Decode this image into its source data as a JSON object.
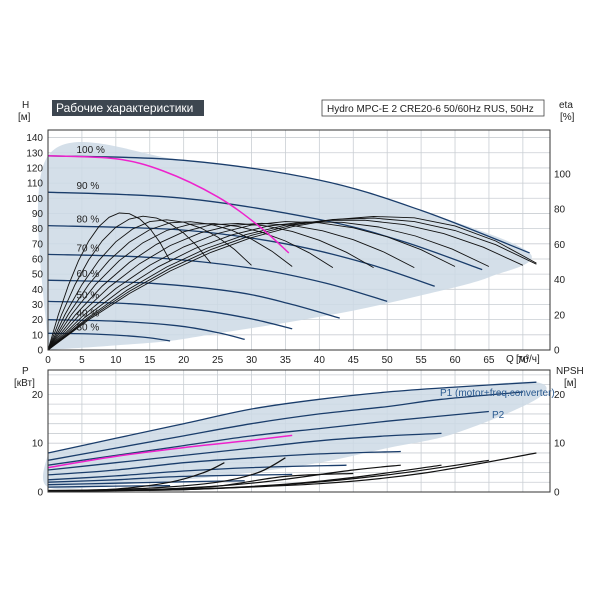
{
  "chart_data": [
    {
      "type": "line",
      "title": "Рабочие характеристики",
      "subtitle": "Hydro MPC-E 2 CRE20-6 50/60Hz RUS, 50Hz",
      "ylabel": "H",
      "yunit": "[м]",
      "xlabel": "Q",
      "xunit": "[м³/ч]",
      "y2label": "eta",
      "y2unit": "[%]",
      "xlim": [
        0,
        74
      ],
      "ylim": [
        0,
        145
      ],
      "y2lim": [
        0,
        125
      ],
      "xticks": [
        0,
        5,
        10,
        15,
        20,
        25,
        30,
        35,
        40,
        45,
        50,
        55,
        60,
        65,
        70
      ],
      "yticks": [
        0,
        10,
        20,
        30,
        40,
        50,
        60,
        70,
        80,
        90,
        100,
        110,
        120,
        130,
        140
      ],
      "y2ticks": [
        0,
        20,
        40,
        60,
        80,
        100
      ],
      "grid": true,
      "colors": {
        "curve": "#1a3d6b",
        "area": "#cdd9e5",
        "highlight": "#ee22cc",
        "eta": "#111111"
      },
      "speed_labels": [
        "100 %",
        "90 %",
        "80 %",
        "70 %",
        "60 %",
        "50 %",
        "40 %",
        "30 %"
      ],
      "speed_curves": [
        {
          "label": "100 %",
          "points": [
            [
              0,
              128
            ],
            [
              20,
              125
            ],
            [
              40,
              112
            ],
            [
              55,
              92
            ],
            [
              71,
              64
            ]
          ]
        },
        {
          "label": "90 %",
          "points": [
            [
              0,
              104
            ],
            [
              20,
              100
            ],
            [
              40,
              86
            ],
            [
              52,
              72
            ],
            [
              64,
              53
            ]
          ]
        },
        {
          "label": "80 %",
          "points": [
            [
              0,
              82
            ],
            [
              20,
              79
            ],
            [
              35,
              70
            ],
            [
              47,
              57
            ],
            [
              57,
              42
            ]
          ]
        },
        {
          "label": "70 %",
          "points": [
            [
              0,
              63
            ],
            [
              15,
              61
            ],
            [
              30,
              54
            ],
            [
              41,
              44
            ],
            [
              50,
              32
            ]
          ]
        },
        {
          "label": "60 %",
          "points": [
            [
              0,
              46
            ],
            [
              15,
              44
            ],
            [
              28,
              38
            ],
            [
              36,
              30
            ],
            [
              43,
              21
            ]
          ]
        },
        {
          "label": "50 %",
          "points": [
            [
              0,
              32
            ],
            [
              12,
              30.5
            ],
            [
              22,
              26.5
            ],
            [
              30,
              20.5
            ],
            [
              36,
              14
            ]
          ]
        },
        {
          "label": "40 %",
          "points": [
            [
              0,
              20
            ],
            [
              10,
              19
            ],
            [
              19,
              16
            ],
            [
              25,
              11.5
            ],
            [
              29,
              7
            ]
          ]
        },
        {
          "label": "30 %",
          "points": [
            [
              0,
              11
            ],
            [
              7,
              10.5
            ],
            [
              14,
              8.5
            ],
            [
              18,
              6
            ]
          ]
        }
      ],
      "duty_curve": [
        [
          0,
          128
        ],
        [
          10,
          126
        ],
        [
          17,
          118
        ],
        [
          25,
          101
        ],
        [
          31,
          82
        ],
        [
          35.5,
          64
        ]
      ],
      "range_area": [
        [
          0,
          0
        ],
        [
          0,
          128
        ],
        [
          20,
          125
        ],
        [
          40,
          112
        ],
        [
          55,
          92
        ],
        [
          71,
          64
        ],
        [
          65,
          48
        ],
        [
          55,
          36
        ],
        [
          45,
          26
        ],
        [
          35,
          18
        ],
        [
          25,
          11
        ],
        [
          18,
          6
        ],
        [
          10,
          3
        ],
        [
          0,
          0
        ]
      ],
      "eta_curves": [
        {
          "x_end": 18,
          "peak_q": 11,
          "peak": 78
        },
        {
          "x_end": 24,
          "peak_q": 14,
          "peak": 76
        },
        {
          "x_end": 30,
          "peak_q": 17,
          "peak": 74
        },
        {
          "x_end": 36,
          "peak_q": 20,
          "peak": 73
        },
        {
          "x_end": 42,
          "peak_q": 23,
          "peak": 72
        },
        {
          "x_end": 48,
          "peak_q": 27,
          "peak": 72
        },
        {
          "x_end": 54,
          "peak_q": 31,
          "peak": 72
        },
        {
          "x_end": 60,
          "peak_q": 36,
          "peak": 73
        },
        {
          "x_end": 65,
          "peak_q": 40,
          "peak": 73
        },
        {
          "x_end": 70,
          "peak_q": 44,
          "peak": 74
        },
        {
          "x_end": 72,
          "peak_q": 47,
          "peak": 75
        },
        {
          "x_end": 72,
          "peak_q": 50,
          "peak": 76
        }
      ]
    },
    {
      "type": "line",
      "ylabel": "P",
      "yunit": "[кВт]",
      "y2label": "NPSH",
      "y2unit": "[м]",
      "xlim": [
        0,
        74
      ],
      "ylim": [
        0,
        25
      ],
      "y2lim": [
        0,
        25
      ],
      "yticks": [
        0,
        10,
        20
      ],
      "y2ticks": [
        0,
        10,
        20
      ],
      "grid": true,
      "series_labels": [
        "P1 (motor+freq.converter)",
        "P2"
      ],
      "range_area": [
        [
          0,
          8
        ],
        [
          10,
          11
        ],
        [
          20,
          14
        ],
        [
          30,
          17
        ],
        [
          40,
          19
        ],
        [
          50,
          20.5
        ],
        [
          60,
          21.5
        ],
        [
          72,
          22.5
        ],
        [
          72,
          19
        ],
        [
          60,
          12
        ],
        [
          50,
          9
        ],
        [
          40,
          6
        ],
        [
          30,
          4
        ],
        [
          20,
          2.5
        ],
        [
          10,
          1.5
        ],
        [
          0,
          1
        ],
        [
          0,
          8
        ]
      ],
      "p1_curves": [
        {
          "points": [
            [
              0,
              8
            ],
            [
              10,
              11
            ],
            [
              20,
              14
            ],
            [
              30,
              17
            ],
            [
              40,
              19
            ],
            [
              50,
              20.5
            ],
            [
              60,
              21.5
            ],
            [
              72,
              22.5
            ]
          ]
        },
        {
          "points": [
            [
              0,
              6.5
            ],
            [
              10,
              9
            ],
            [
              20,
              11.5
            ],
            [
              30,
              14
            ],
            [
              40,
              16
            ],
            [
              50,
              17.5
            ],
            [
              58,
              19
            ],
            [
              70,
              20.5
            ]
          ]
        },
        {
          "points": [
            [
              0,
              5.5
            ],
            [
              10,
              7.5
            ],
            [
              20,
              9.5
            ],
            [
              30,
              11.5
            ],
            [
              40,
              13
            ],
            [
              50,
              14.5
            ],
            [
              65,
              16.5
            ]
          ]
        },
        {
          "points": [
            [
              0,
              4.5
            ],
            [
              10,
              6
            ],
            [
              20,
              7.5
            ],
            [
              30,
              9
            ],
            [
              40,
              10.5
            ],
            [
              50,
              11.5
            ],
            [
              58,
              12
            ]
          ]
        },
        {
          "points": [
            [
              0,
              3.5
            ],
            [
              10,
              4.5
            ],
            [
              20,
              6
            ],
            [
              30,
              7
            ],
            [
              40,
              7.8
            ],
            [
              52,
              8.3
            ]
          ]
        },
        {
          "points": [
            [
              0,
              2.5
            ],
            [
              10,
              3.3
            ],
            [
              20,
              4.3
            ],
            [
              30,
              5
            ],
            [
              44,
              5.5
            ]
          ]
        },
        {
          "points": [
            [
              0,
              2
            ],
            [
              10,
              2.5
            ],
            [
              20,
              3.2
            ],
            [
              36,
              3.6
            ]
          ]
        },
        {
          "points": [
            [
              0,
              1.5
            ],
            [
              10,
              1.8
            ],
            [
              20,
              2.1
            ],
            [
              29,
              2.3
            ]
          ]
        },
        {
          "points": [
            [
              0,
              1
            ],
            [
              10,
              1.2
            ],
            [
              18,
              1.3
            ]
          ]
        }
      ],
      "duty_power": [
        [
          0,
          5
        ],
        [
          10,
          7.3
        ],
        [
          20,
          9.1
        ],
        [
          30,
          10.6
        ],
        [
          36,
          11.6
        ]
      ],
      "npsh_curves": [
        {
          "points": [
            [
              0,
              0.3
            ],
            [
              20,
              0.6
            ],
            [
              40,
              1.7
            ],
            [
              55,
              3.8
            ],
            [
              72,
              8
            ]
          ]
        },
        {
          "points": [
            [
              0,
              0.3
            ],
            [
              20,
              0.5
            ],
            [
              35,
              1.5
            ],
            [
              50,
              3.5
            ],
            [
              65,
              6.5
            ]
          ]
        },
        {
          "points": [
            [
              0,
              0.2
            ],
            [
              20,
              0.5
            ],
            [
              35,
              1.6
            ],
            [
              45,
              3
            ],
            [
              58,
              5.5
            ]
          ]
        },
        {
          "points": [
            [
              0,
              0.2
            ],
            [
              15,
              0.5
            ],
            [
              30,
              1.8
            ],
            [
              45,
              4.5
            ],
            [
              52,
              5.5
            ]
          ]
        },
        {
          "points": [
            [
              0,
              0.2
            ],
            [
              15,
              0.5
            ],
            [
              25,
              1.2
            ],
            [
              35,
              3.2
            ],
            [
              45,
              3.8
            ]
          ]
        },
        {
          "points": [
            [
              0,
              0.2
            ],
            [
              15,
              0.8
            ],
            [
              25,
              2
            ],
            [
              31,
              4
            ],
            [
              35,
              7
            ]
          ]
        },
        {
          "points": [
            [
              0,
              0.1
            ],
            [
              10,
              0.6
            ],
            [
              18,
              2
            ],
            [
              23,
              4
            ],
            [
              26,
              6
            ]
          ]
        }
      ]
    }
  ]
}
